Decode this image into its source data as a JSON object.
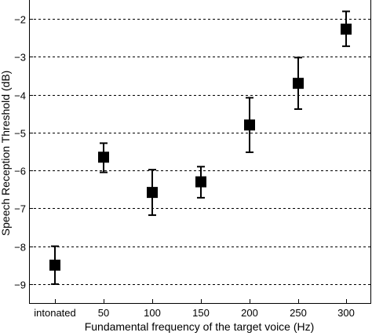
{
  "chart_data": {
    "type": "scatter",
    "title": "",
    "xlabel": "Fundamental frequency of the target voice (Hz)",
    "ylabel": "Speech Reception Threshold (dB)",
    "categories": [
      "intonated",
      "50",
      "100",
      "150",
      "200",
      "250",
      "300"
    ],
    "ylim": [
      -9.5,
      -1.5
    ],
    "yticks": [
      -9,
      -8,
      -7,
      -6,
      -5,
      -4,
      -3,
      -2
    ],
    "grid": "horizontal dashed",
    "marker": "square",
    "marker_color": "#000000",
    "series": [
      {
        "points": [
          {
            "x": "intonated",
            "y": -8.5,
            "err_low": -9.0,
            "err_high": -8.0
          },
          {
            "x": "50",
            "y": -5.65,
            "err_low": -6.05,
            "err_high": -5.28
          },
          {
            "x": "100",
            "y": -6.58,
            "err_low": -7.18,
            "err_high": -5.98
          },
          {
            "x": "150",
            "y": -6.3,
            "err_low": -6.72,
            "err_high": -5.9
          },
          {
            "x": "200",
            "y": -4.8,
            "err_low": -5.52,
            "err_high": -4.08
          },
          {
            "x": "250",
            "y": -3.7,
            "err_low": -4.38,
            "err_high": -3.02
          },
          {
            "x": "300",
            "y": -2.27,
            "err_low": -2.72,
            "err_high": -1.8
          }
        ]
      }
    ]
  }
}
